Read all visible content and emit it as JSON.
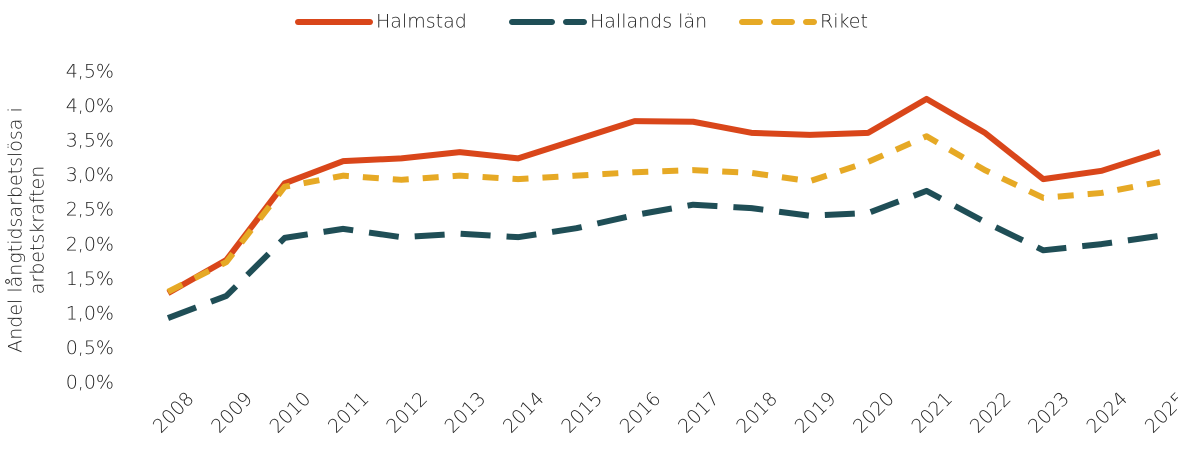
{
  "chart_data": {
    "type": "line",
    "ylabel": [
      "Andel långtidsarbetslösa i",
      "arbetskraften"
    ],
    "categories": [
      "2008",
      "2009",
      "2010",
      "2011",
      "2012",
      "2013",
      "2014",
      "2015",
      "2016",
      "2017",
      "2018",
      "2019",
      "2020",
      "2021",
      "2022",
      "2023",
      "2024",
      "2025"
    ],
    "series": [
      {
        "name": "Halmstad",
        "color": "#d9461a",
        "line_style": "solid",
        "values": [
          1.3,
          1.78,
          2.89,
          3.21,
          3.25,
          3.34,
          3.25,
          3.52,
          3.79,
          3.78,
          3.62,
          3.59,
          3.62,
          4.11,
          3.62,
          2.95,
          3.07,
          3.34
        ]
      },
      {
        "name": "Hallands län",
        "color": "#1f4e56",
        "line_style": "long-dash",
        "values": [
          0.94,
          1.26,
          2.1,
          2.23,
          2.11,
          2.16,
          2.11,
          2.24,
          2.43,
          2.58,
          2.53,
          2.42,
          2.46,
          2.78,
          2.33,
          1.92,
          2.01,
          2.13
        ]
      },
      {
        "name": "Riket",
        "color": "#e6a925",
        "line_style": "dash",
        "values": [
          1.32,
          1.75,
          2.84,
          3.0,
          2.94,
          3.0,
          2.95,
          3.0,
          3.05,
          3.08,
          3.04,
          2.92,
          3.2,
          3.57,
          3.08,
          2.68,
          2.75,
          2.91
        ]
      }
    ],
    "ylim": [
      0,
      4.5
    ],
    "yticks": [
      {
        "value": 0,
        "label": "0,0%"
      },
      {
        "value": 0.5,
        "label": "0,5%"
      },
      {
        "value": 1,
        "label": "1,0%"
      },
      {
        "value": 1.5,
        "label": "1,5%"
      },
      {
        "value": 2,
        "label": "2,0%"
      },
      {
        "value": 2.5,
        "label": "2,5%"
      },
      {
        "value": 3,
        "label": "3,0%"
      },
      {
        "value": 3.5,
        "label": "3,5%"
      },
      {
        "value": 4,
        "label": "4,0%"
      },
      {
        "value": 4.5,
        "label": "4,5%"
      }
    ],
    "grid": false,
    "legend": "top"
  }
}
